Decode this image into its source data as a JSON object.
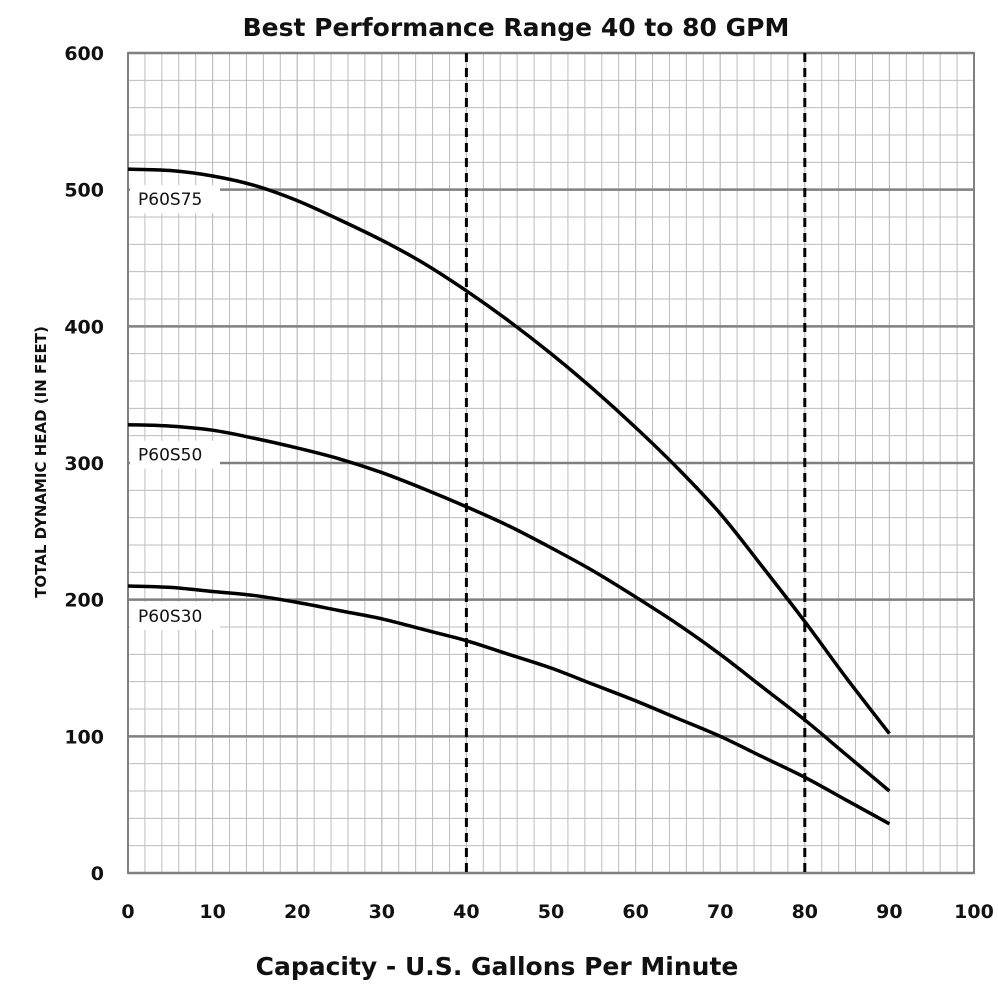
{
  "chart_data": {
    "type": "line",
    "title": "Best Performance Range 40 to 80 GPM",
    "xlabel": "Capacity - U.S. Gallons Per Minute",
    "ylabel": "TOTAL DYNAMIC HEAD (IN FEET)",
    "xlim": [
      0,
      100
    ],
    "ylim": [
      0,
      600
    ],
    "x_ticks": [
      "0",
      "10",
      "20",
      "30",
      "40",
      "50",
      "60",
      "70",
      "80",
      "90",
      "100"
    ],
    "y_ticks": [
      "0",
      "100",
      "200",
      "300",
      "400",
      "500",
      "600"
    ],
    "x_tick_values": [
      0,
      10,
      20,
      30,
      40,
      50,
      60,
      70,
      80,
      90,
      100
    ],
    "y_tick_values": [
      0,
      100,
      200,
      300,
      400,
      500,
      600
    ],
    "minor_x_step": 2,
    "minor_y_step": 20,
    "grid": true,
    "reference_lines_x": [
      40,
      80
    ],
    "series": [
      {
        "name": "P60S75",
        "x": [
          0,
          5,
          10,
          15,
          20,
          25,
          30,
          35,
          40,
          45,
          50,
          55,
          60,
          65,
          70,
          75,
          80,
          85,
          90
        ],
        "values": [
          515,
          514,
          510,
          503,
          492,
          478,
          463,
          446,
          426,
          404,
          380,
          354,
          326,
          296,
          263,
          224,
          184,
          142,
          102
        ]
      },
      {
        "name": "P60S50",
        "x": [
          0,
          5,
          10,
          15,
          20,
          25,
          30,
          35,
          40,
          45,
          50,
          55,
          60,
          65,
          70,
          75,
          80,
          85,
          90
        ],
        "values": [
          328,
          327,
          324,
          318,
          311,
          303,
          293,
          281,
          268,
          254,
          238,
          221,
          202,
          182,
          160,
          136,
          112,
          86,
          60
        ]
      },
      {
        "name": "P60S30",
        "x": [
          0,
          5,
          10,
          15,
          20,
          25,
          30,
          35,
          40,
          45,
          50,
          55,
          60,
          65,
          70,
          75,
          80,
          85,
          90
        ],
        "values": [
          210,
          209,
          206,
          203,
          198,
          192,
          186,
          178,
          170,
          160,
          150,
          138,
          126,
          113,
          100,
          85,
          70,
          53,
          36
        ]
      }
    ]
  }
}
